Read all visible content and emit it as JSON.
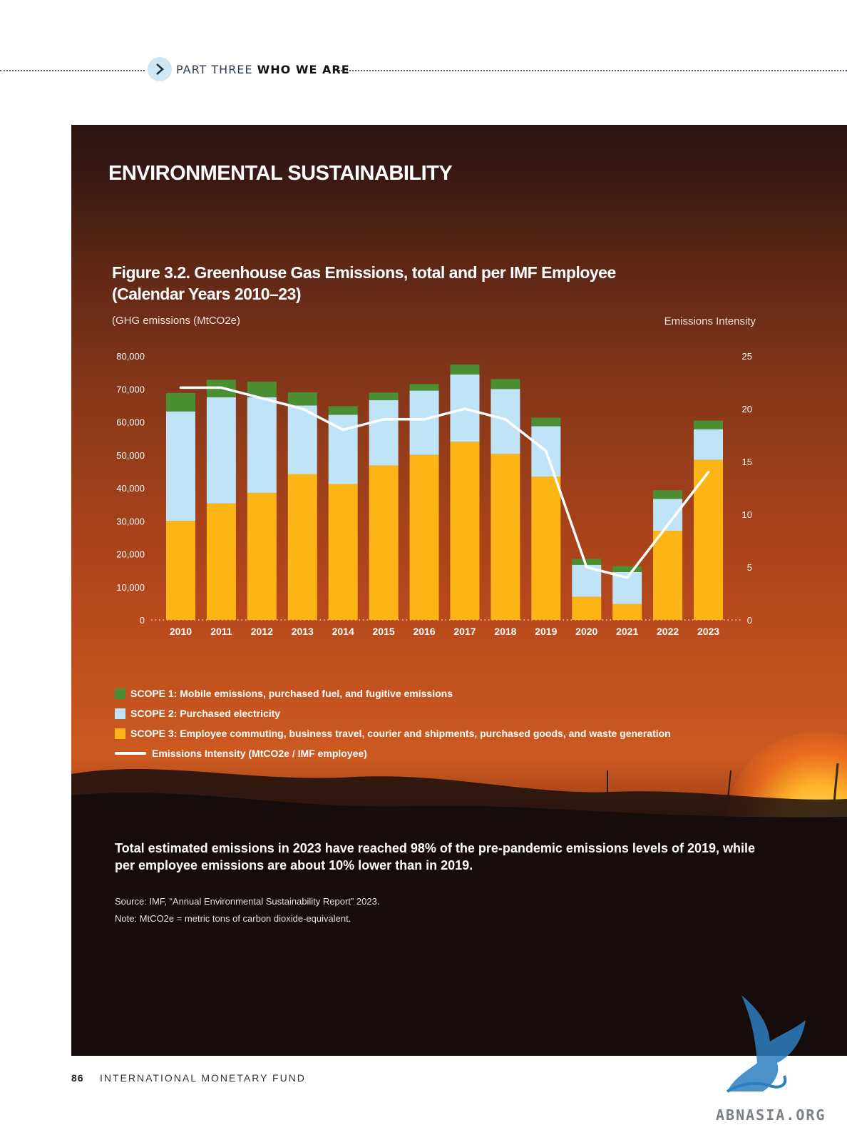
{
  "header": {
    "part_prefix": "PART THREE",
    "part_name": "WHO WE ARE"
  },
  "section_title": "ENVIRONMENTAL SUSTAINABILITY",
  "figure": {
    "title_line1": "Figure 3.2. Greenhouse Gas Emissions, total and per IMF Employee",
    "title_line2": "(Calendar Years 2010–23)"
  },
  "chart_data": {
    "type": "bar",
    "stacked": true,
    "categories": [
      "2010",
      "2011",
      "2012",
      "2013",
      "2014",
      "2015",
      "2016",
      "2017",
      "2018",
      "2019",
      "2020",
      "2021",
      "2022",
      "2023"
    ],
    "series": [
      {
        "name": "SCOPE 3: Employee commuting, business travel, courier and shipments, purchased goods, and waste generation",
        "color": "#fdb515",
        "values": [
          30000,
          35300,
          38500,
          44200,
          41200,
          46800,
          50000,
          54000,
          50300,
          43400,
          7000,
          4800,
          27000,
          48500
        ]
      },
      {
        "name": "SCOPE 2: Purchased electricity",
        "color": "#bfe3f7",
        "values": [
          33200,
          32200,
          29000,
          20800,
          21000,
          19800,
          19500,
          20400,
          19700,
          15300,
          9700,
          9700,
          9700,
          9300
        ]
      },
      {
        "name": "SCOPE 1: Mobile emissions, purchased fuel, and fugitive emissions",
        "color": "#4a8f32",
        "values": [
          5600,
          5300,
          4700,
          4000,
          2600,
          2300,
          2000,
          3000,
          3000,
          2600,
          1800,
          1800,
          2600,
          2600
        ]
      }
    ],
    "line_series": {
      "name": "Emissions Intensity (MtCO2e / IMF employee)",
      "color": "#ffffff",
      "axis": "right",
      "values": [
        22,
        22,
        21,
        20,
        18,
        19,
        19,
        20,
        19,
        16,
        5,
        4,
        9,
        14
      ]
    },
    "ylabel": "(GHG emissions (MtCO2e)",
    "y2label": "Emissions Intensity",
    "ylim": [
      0,
      80000
    ],
    "y2lim": [
      0,
      25
    ],
    "yticks": [
      "0",
      "10,000",
      "20,000",
      "30,000",
      "40,000",
      "50,000",
      "60,000",
      "70,000",
      "80,000"
    ],
    "y2ticks": [
      "0",
      "5",
      "10",
      "15",
      "20",
      "25"
    ],
    "grid": false,
    "legend_position": "bottom-left"
  },
  "legend": [
    {
      "label": "SCOPE 1: Mobile emissions, purchased fuel, and fugitive emissions",
      "color": "#4a8f32"
    },
    {
      "label": "SCOPE 2: Purchased electricity",
      "color": "#bfe3f7"
    },
    {
      "label": "SCOPE 3: Employee commuting, business travel, courier and shipments, purchased goods, and waste generation",
      "color": "#fdb515"
    },
    {
      "label": "Emissions Intensity (MtCO2e / IMF employee)",
      "color": "#ffffff",
      "kind": "line"
    }
  ],
  "summary_text": "Total estimated emissions in 2023 have reached 98% of the pre-pandemic emissions levels of 2019, while per employee emissions are about 10% lower than in 2019.",
  "source_text": "Source: IMF, “Annual Environmental Sustainability Report” 2023.",
  "note_text": "Note: MtCO2e = metric tons of carbon dioxide-equivalent.",
  "footer": {
    "page_number": "86",
    "organization": "INTERNATIONAL MONETARY FUND"
  },
  "watermark_text": "ABNASIA.ORG"
}
